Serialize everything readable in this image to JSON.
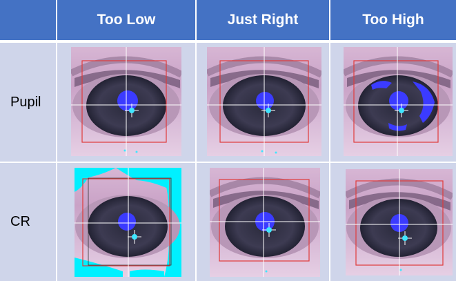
{
  "table": {
    "columns": [
      "Too Low",
      "Just Right",
      "Too High"
    ],
    "rows": [
      {
        "label": "Pupil"
      },
      {
        "label": "CR"
      }
    ]
  },
  "colors": {
    "header_bg": "#4472c4",
    "row_bg": "#cfd5ea",
    "pupil_fill": "#3b3bff",
    "cr_spot": "#3fe6ff",
    "crosshair": "#ffffff",
    "roi_box": "#e03a3a",
    "overflow_cyan": "#00f0ff"
  },
  "icons": [
    "eye-image"
  ]
}
